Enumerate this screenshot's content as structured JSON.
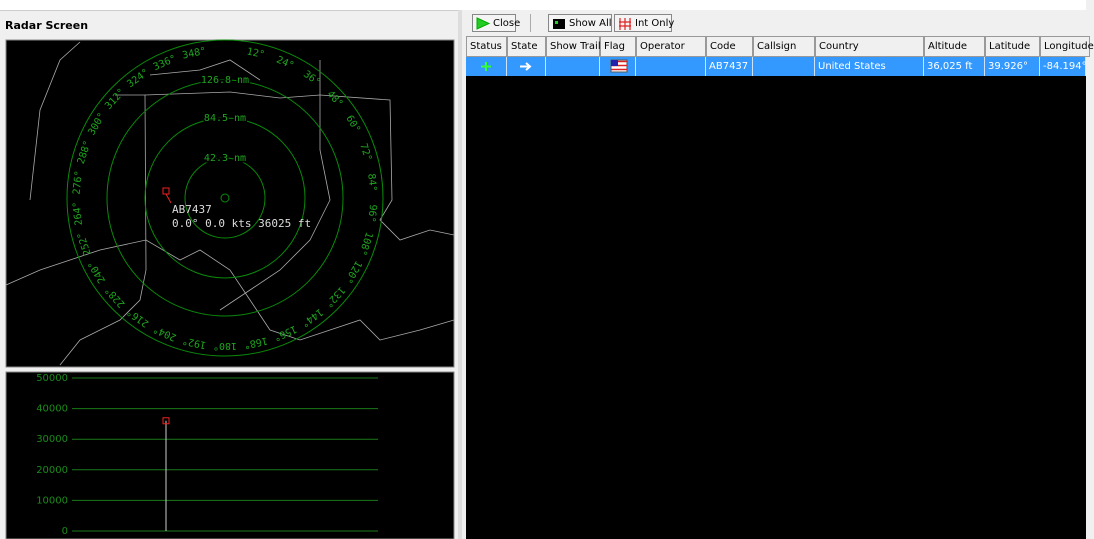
{
  "header": {
    "title": "Radar Screen"
  },
  "toolbar": {
    "buttons": [
      "Close",
      "Show All",
      "Int Only"
    ]
  },
  "radar": {
    "range_labels": [
      "126.8 nm",
      "84.5 nm",
      "42.3 nm"
    ],
    "bearing_labels": [
      "12°",
      "24°",
      "36°",
      "48°",
      "60°",
      "72°",
      "84°",
      "96°",
      "108°",
      "120°",
      "132°",
      "144°",
      "156°",
      "168°",
      "180°",
      "192°",
      "204°",
      "216°",
      "228°",
      "240°",
      "252°",
      "264°",
      "276°",
      "288°",
      "300°",
      "312°",
      "324°",
      "336°",
      "348°"
    ],
    "target": {
      "code": "AB7437",
      "info": "0.0° 0.0 kts 36025 ft"
    }
  },
  "altitude_chart": {
    "ylim": [
      0,
      50000
    ],
    "yticks": [
      0,
      10000,
      20000,
      30000,
      40000,
      50000
    ],
    "values": [
      36025
    ]
  },
  "table": {
    "columns": [
      "Status",
      "State",
      "Show Trail",
      "Flag",
      "Operator",
      "Code",
      "Callsign",
      "Country",
      "Altitude",
      "Latitude",
      "Longitude"
    ],
    "rows": [
      {
        "code": "AB7437",
        "country": "United States",
        "altitude": "36,025 ft",
        "latitude": "39.926°",
        "longitude": "-84.194°"
      }
    ]
  }
}
